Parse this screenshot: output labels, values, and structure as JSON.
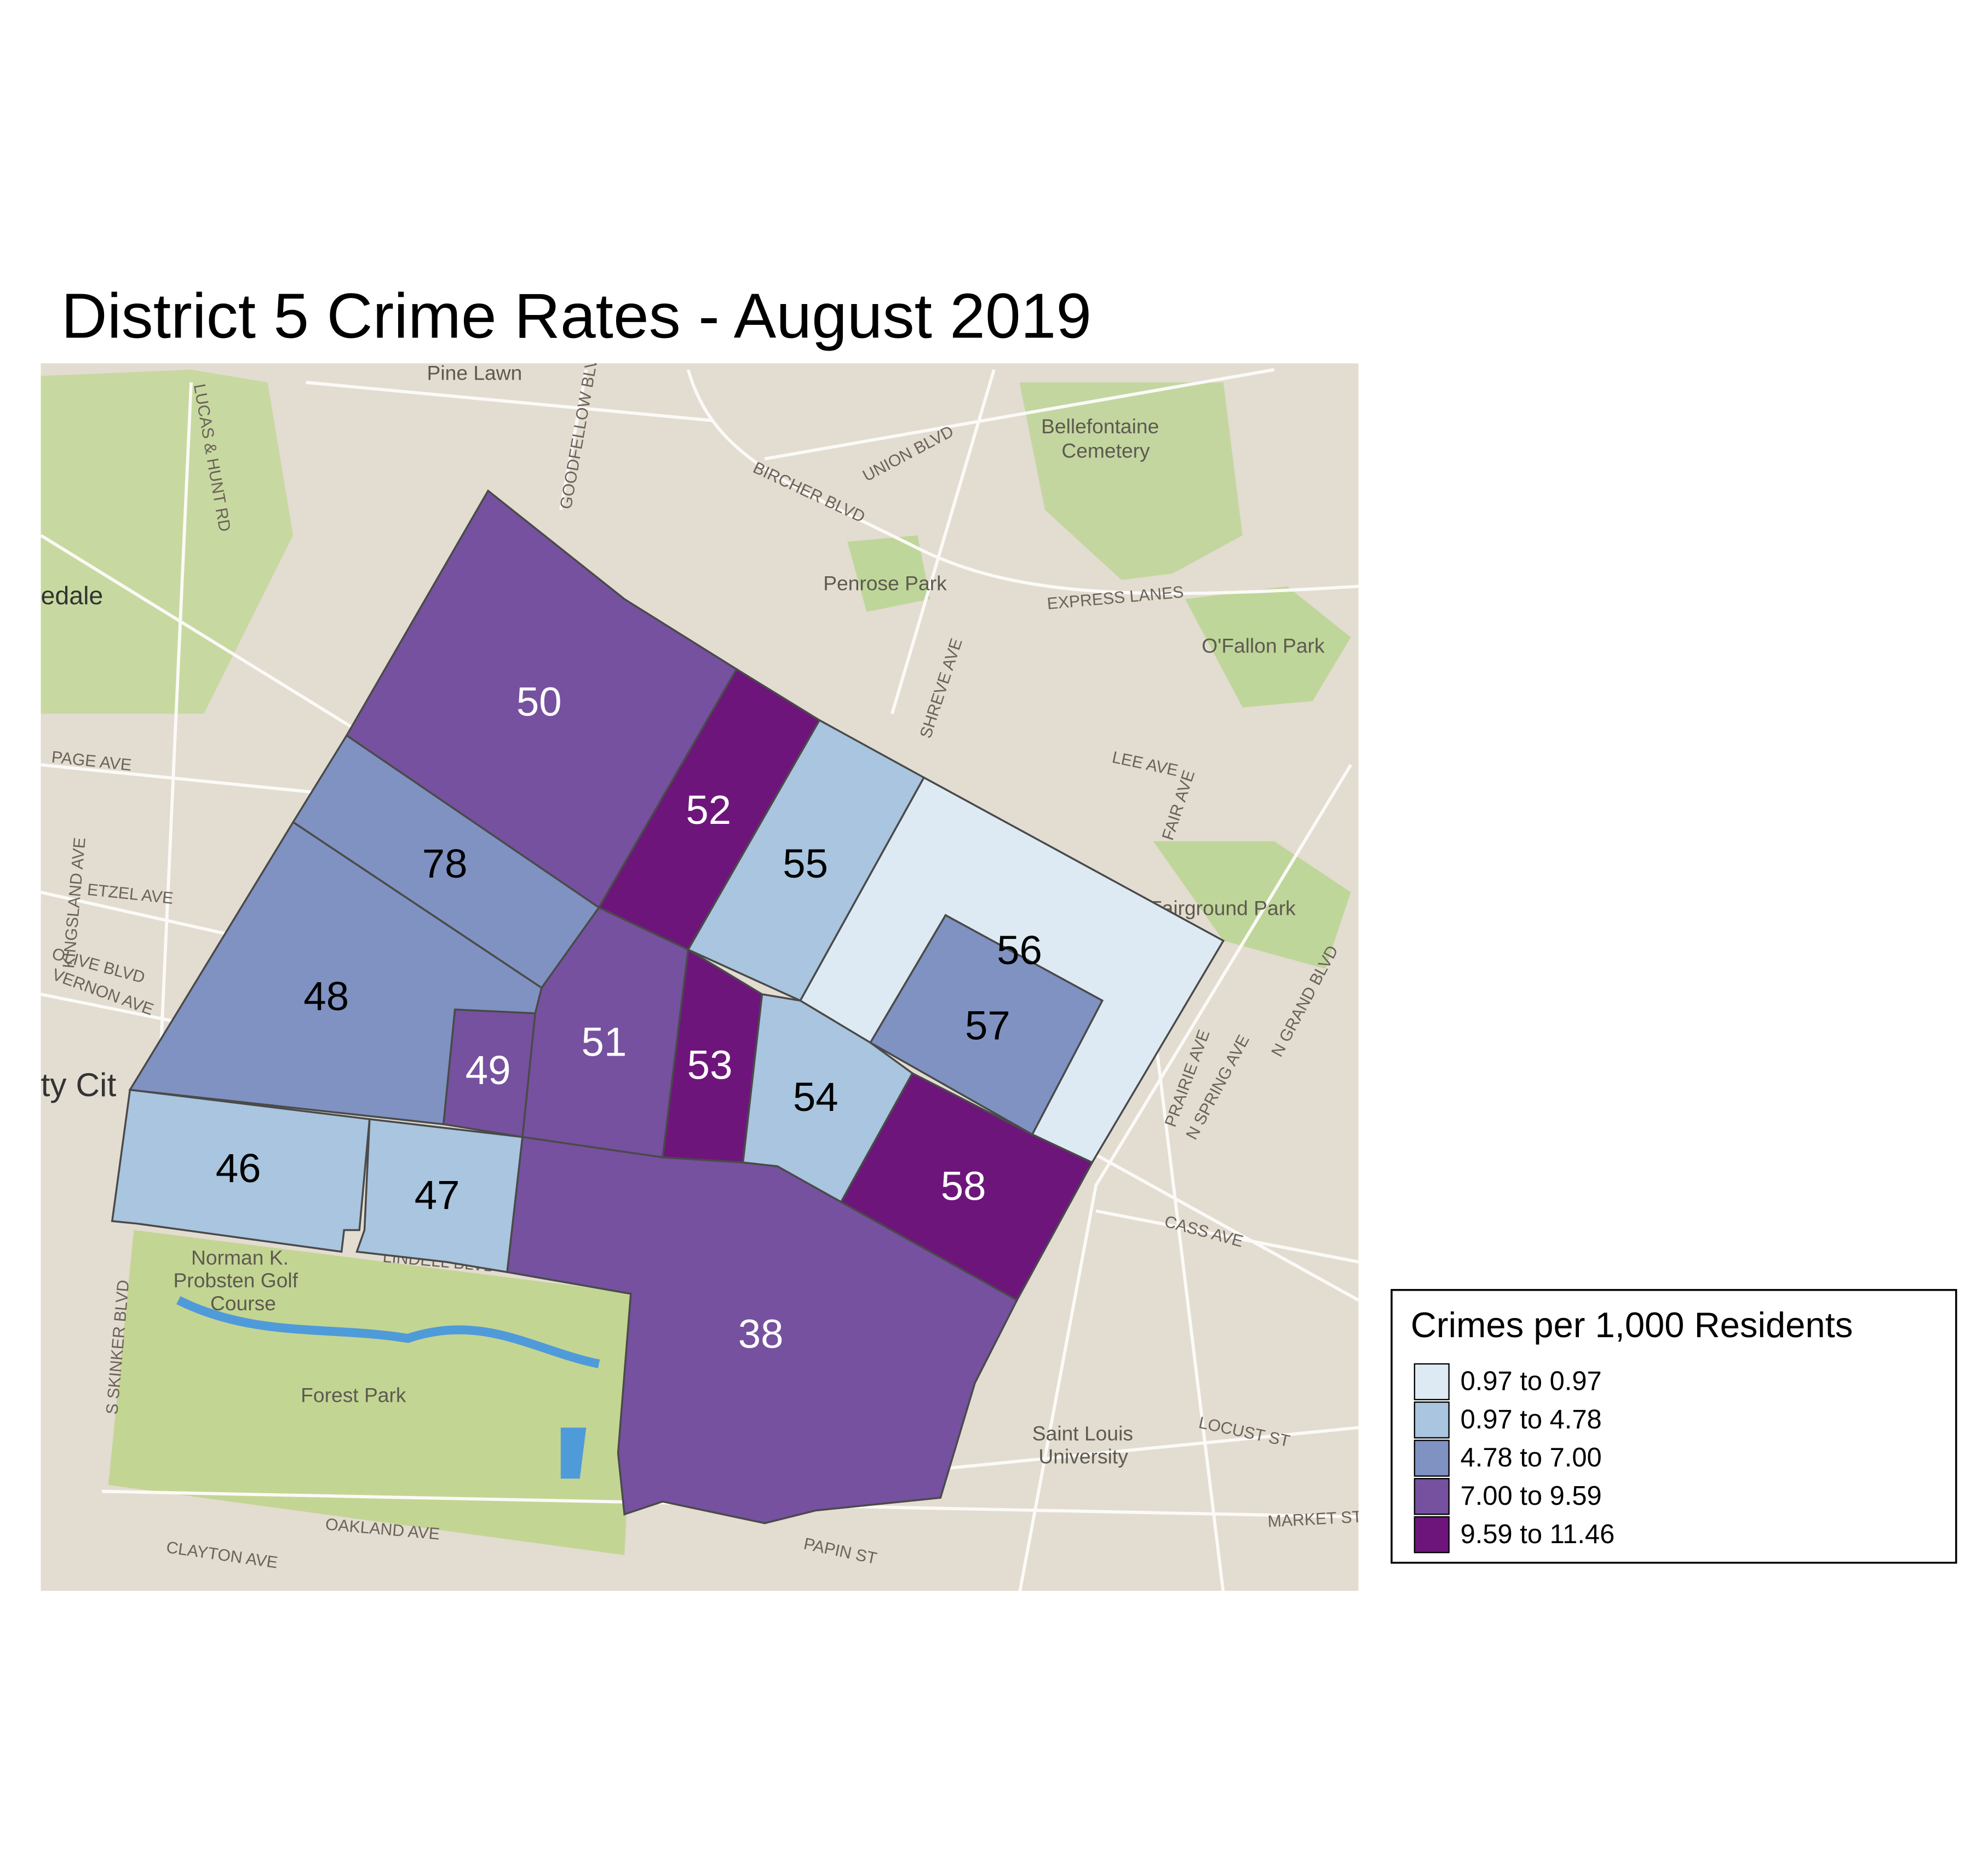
{
  "title": "District 5 Crime Rates - August 2019",
  "legend": {
    "title": "Crimes per 1,000 Residents",
    "classes": [
      {
        "label": "0.97 to 0.97",
        "color": "#deeaf3"
      },
      {
        "label": "0.97 to 4.78",
        "color": "#a9c5df"
      },
      {
        "label": "4.78 to 7.00",
        "color": "#7f92c2"
      },
      {
        "label": "7.00 to 9.59",
        "color": "#76519f"
      },
      {
        "label": "9.59 to 11.46",
        "color": "#6e157c"
      }
    ]
  },
  "neighborhoods": [
    {
      "label": "50",
      "class": 3
    },
    {
      "label": "52",
      "class": 4
    },
    {
      "label": "55",
      "class": 1
    },
    {
      "label": "56",
      "class": 0
    },
    {
      "label": "57",
      "class": 2
    },
    {
      "label": "78",
      "class": 2
    },
    {
      "label": "48",
      "class": 2
    },
    {
      "label": "49",
      "class": 3
    },
    {
      "label": "51",
      "class": 3
    },
    {
      "label": "53",
      "class": 4
    },
    {
      "label": "54",
      "class": 1
    },
    {
      "label": "58",
      "class": 4
    },
    {
      "label": "46",
      "class": 1
    },
    {
      "label": "47",
      "class": 1
    },
    {
      "label": "38",
      "class": 3
    }
  ],
  "basemap_labels": [
    "Pine Lawn",
    "Bellefontaine",
    "Cemetery",
    "Penrose Park",
    "O'Fallon Park",
    "Fairground Park",
    "Norman K.",
    "Probsten Golf",
    "Course",
    "Forest Park",
    "Saint Louis",
    "University",
    "UNION BLVD",
    "BIRCHER BLVD",
    "EXPRESS LANES",
    "PAGE AVE",
    "ETZEL AVE",
    "OLIVE BLVD",
    "VERNON AVE",
    "LEE AVE",
    "CASS AVE",
    "LOCUST ST",
    "OAKLAND AVE",
    "CLAYTON AVE",
    "PAPIN ST",
    "MARKET ST",
    "LUCAS & HUNT RD",
    "GOODFELLOW BLVD",
    "SHREVE AVE",
    "KINGSLAND AVE",
    "S SKINKER BLVD",
    "LINDELL BLVD",
    "N GRAND BLVD",
    "FAIR AVE",
    "PRAIRIE AVE",
    "N SPRING AVE",
    "edale",
    "ty Cit"
  ]
}
